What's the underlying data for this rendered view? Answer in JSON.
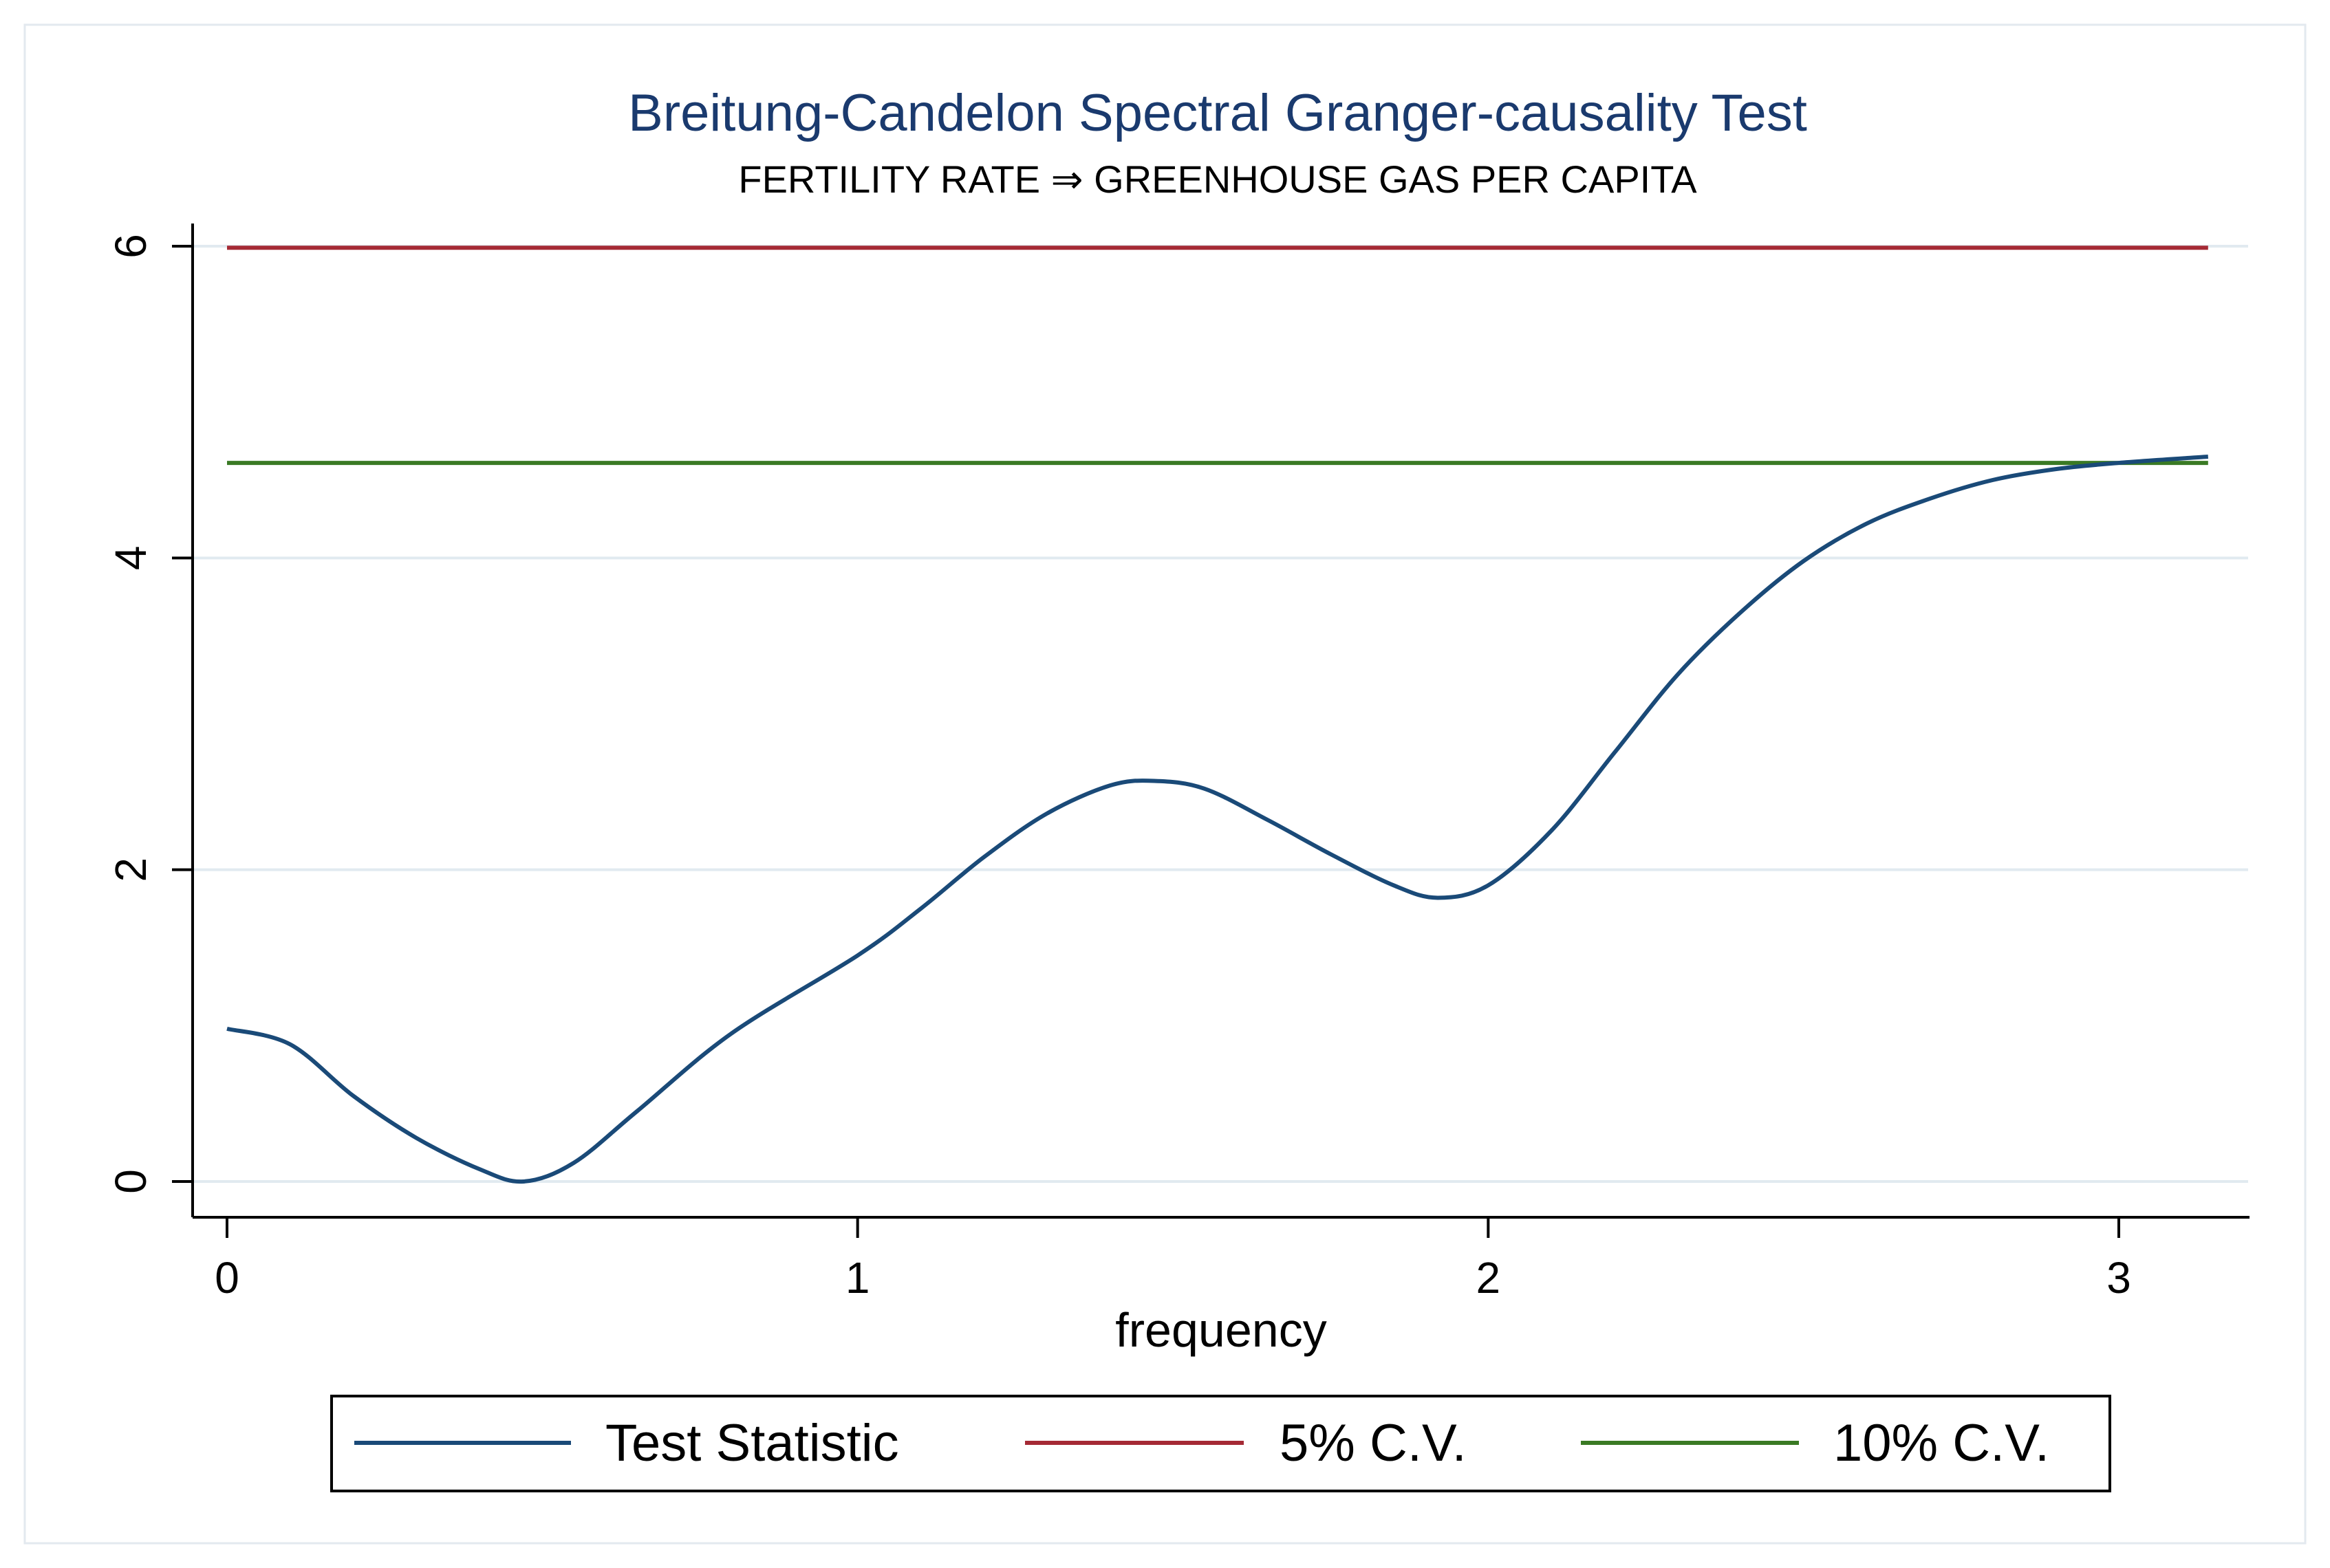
{
  "chart_data": {
    "type": "line",
    "title": "Breitung-Candelon Spectral Granger-causality Test",
    "subtitle": "FERTILITY RATE ⇒ GREENHOUSE GAS PER CAPITA",
    "xlabel": "frequency",
    "ylabel": "",
    "xlim": [
      0,
      3.1416
    ],
    "ylim": [
      0,
      6
    ],
    "xticks": [
      0,
      1,
      2,
      3
    ],
    "yticks": [
      0,
      2,
      4,
      6
    ],
    "grid": "horizontal",
    "legend_position": "bottom",
    "series": [
      {
        "name": "Test Statistic",
        "color": "#1a4a78",
        "x": [
          0.0,
          0.1,
          0.2,
          0.3,
          0.4,
          0.47,
          0.55,
          0.65,
          0.8,
          1.0,
          1.1,
          1.2,
          1.3,
          1.4,
          1.47,
          1.55,
          1.65,
          1.75,
          1.85,
          1.92,
          2.0,
          2.1,
          2.2,
          2.3,
          2.4,
          2.5,
          2.6,
          2.7,
          2.8,
          2.9,
          3.0,
          3.1416
        ],
        "y": [
          0.98,
          0.88,
          0.55,
          0.28,
          0.08,
          0.0,
          0.12,
          0.45,
          0.95,
          1.45,
          1.75,
          2.08,
          2.36,
          2.54,
          2.57,
          2.52,
          2.32,
          2.1,
          1.9,
          1.82,
          1.9,
          2.25,
          2.75,
          3.25,
          3.65,
          3.98,
          4.22,
          4.38,
          4.5,
          4.57,
          4.61,
          4.65
        ]
      },
      {
        "name": "5% C.V.",
        "color": "#a52a35",
        "x": [
          0.0,
          3.1416
        ],
        "y": [
          5.99,
          5.99
        ]
      },
      {
        "name": "10% C.V.",
        "color": "#3a7a24",
        "x": [
          0.0,
          3.1416
        ],
        "y": [
          4.61,
          4.61
        ]
      }
    ]
  }
}
